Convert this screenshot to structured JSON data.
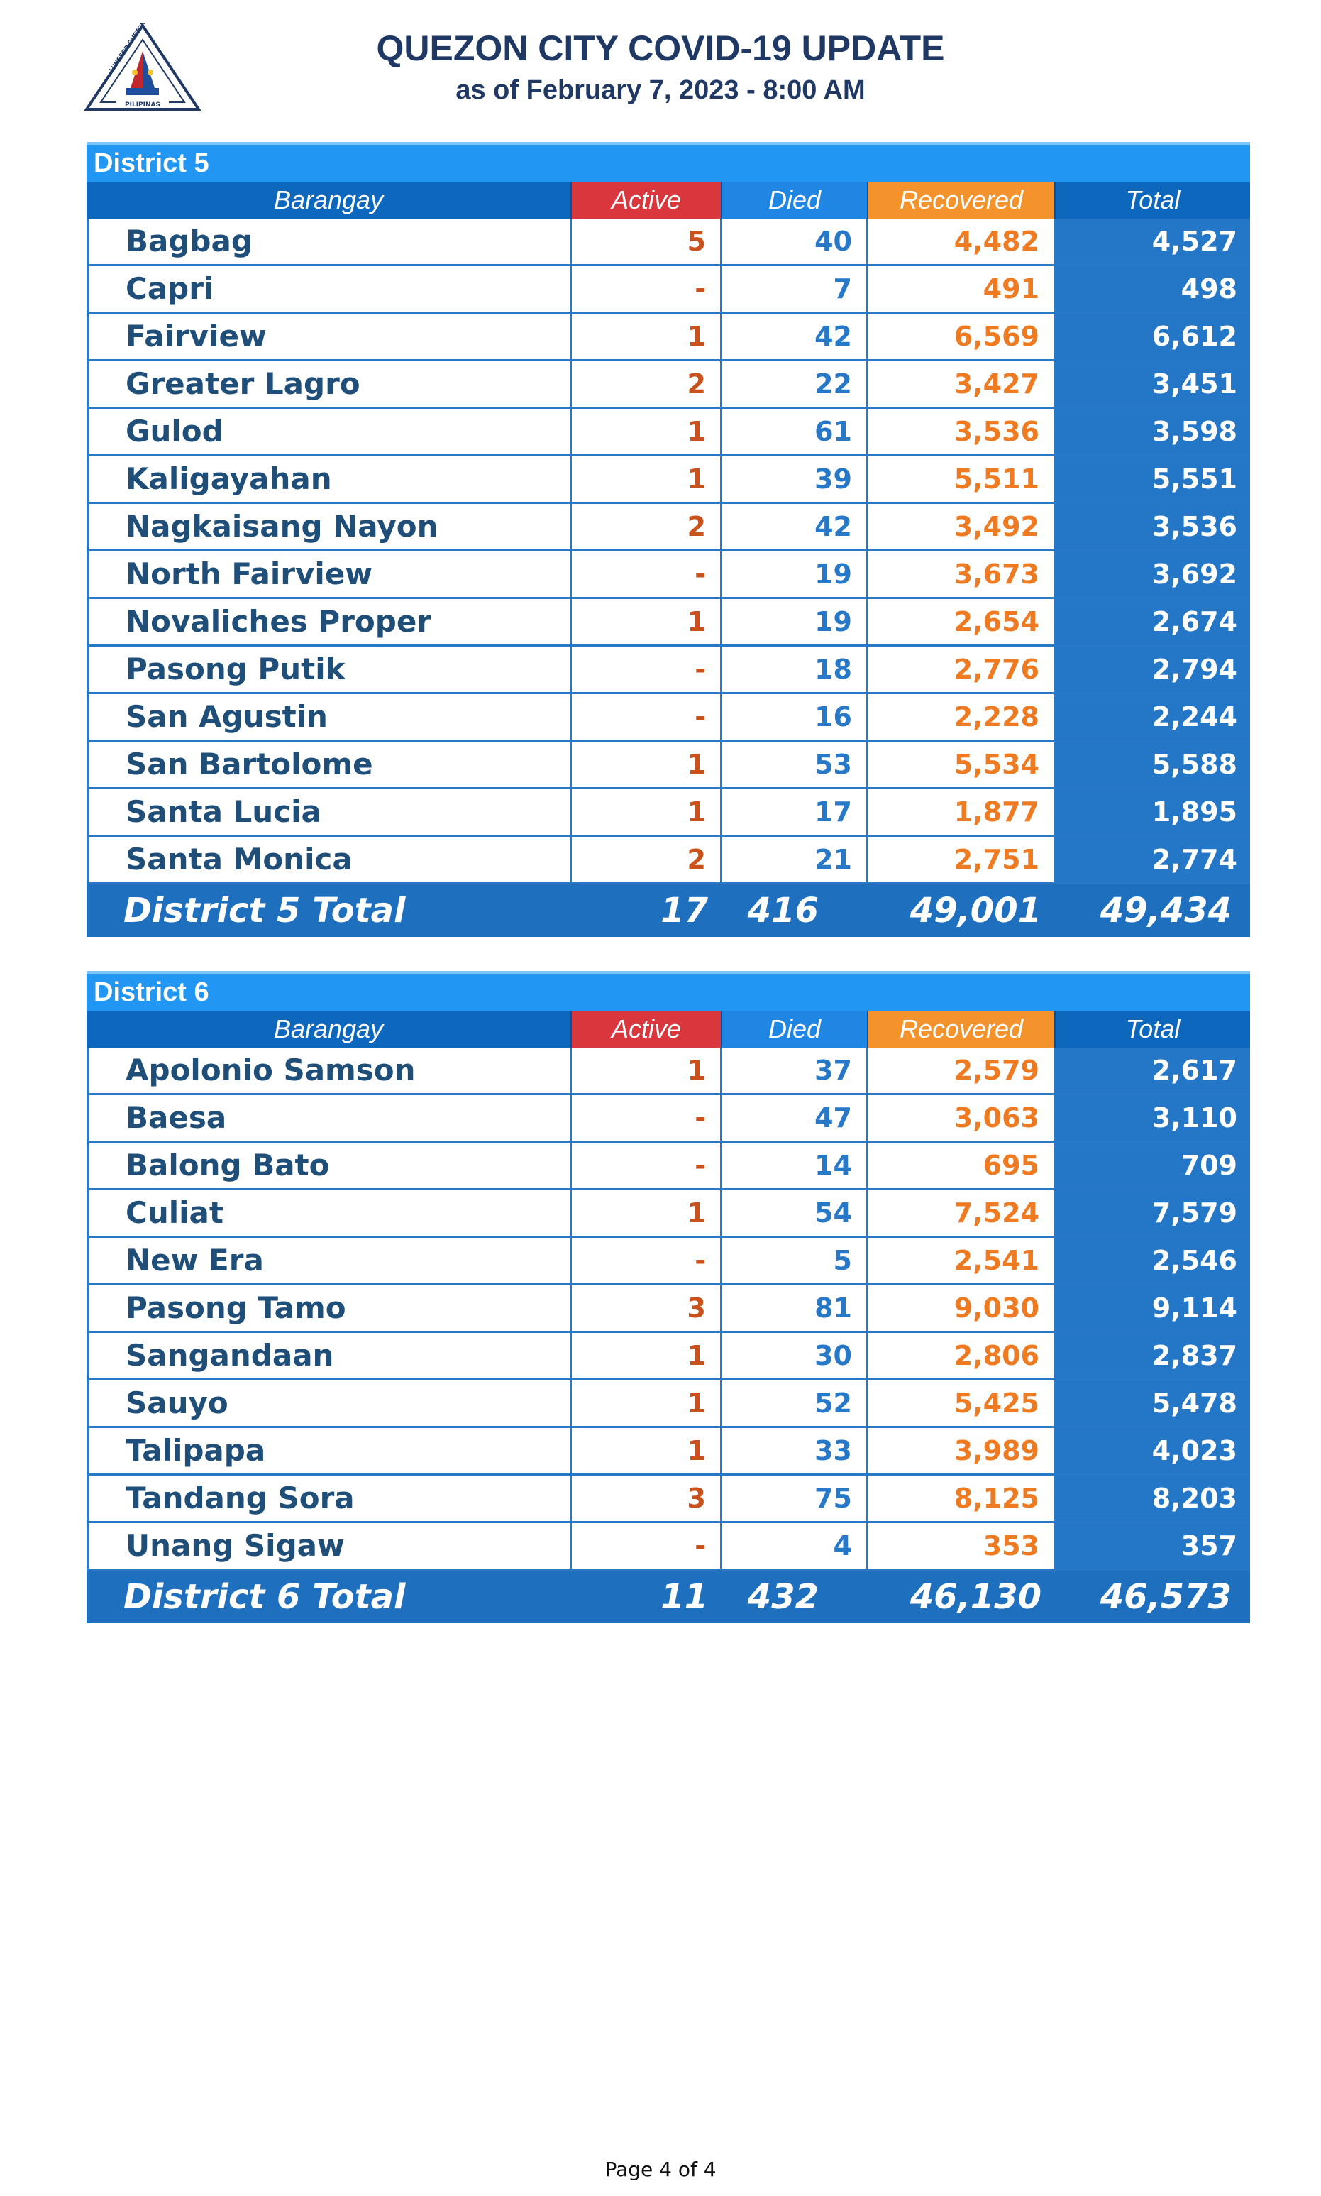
{
  "header": {
    "title": "QUEZON CITY COVID-19 UPDATE",
    "subtitle": "as of February  7, 2023 - 8:00 AM",
    "logo_top_text": "LUNGSOD QUEZON",
    "logo_bottom_text": "PILIPINAS"
  },
  "columns": {
    "barangay": "Barangay",
    "active": "Active",
    "died": "Died",
    "recovered": "Recovered",
    "total": "Total"
  },
  "colors": {
    "section_header": "#2196f3",
    "active": "#d9363e",
    "died": "#1f86e3",
    "recovered": "#f4932c",
    "total": "#0d67bd"
  },
  "districts": [
    {
      "name": "District 5",
      "rows": [
        {
          "barangay": "Bagbag",
          "active": "5",
          "died": "40",
          "recovered": "4,482",
          "total": "4,527"
        },
        {
          "barangay": "Capri",
          "active": "-",
          "died": "7",
          "recovered": "491",
          "total": "498"
        },
        {
          "barangay": "Fairview",
          "active": "1",
          "died": "42",
          "recovered": "6,569",
          "total": "6,612"
        },
        {
          "barangay": "Greater Lagro",
          "active": "2",
          "died": "22",
          "recovered": "3,427",
          "total": "3,451"
        },
        {
          "barangay": "Gulod",
          "active": "1",
          "died": "61",
          "recovered": "3,536",
          "total": "3,598"
        },
        {
          "barangay": "Kaligayahan",
          "active": "1",
          "died": "39",
          "recovered": "5,511",
          "total": "5,551"
        },
        {
          "barangay": "Nagkaisang Nayon",
          "active": "2",
          "died": "42",
          "recovered": "3,492",
          "total": "3,536"
        },
        {
          "barangay": "North Fairview",
          "active": "-",
          "died": "19",
          "recovered": "3,673",
          "total": "3,692"
        },
        {
          "barangay": "Novaliches Proper",
          "active": "1",
          "died": "19",
          "recovered": "2,654",
          "total": "2,674"
        },
        {
          "barangay": "Pasong Putik",
          "active": "-",
          "died": "18",
          "recovered": "2,776",
          "total": "2,794"
        },
        {
          "barangay": "San Agustin",
          "active": "-",
          "died": "16",
          "recovered": "2,228",
          "total": "2,244"
        },
        {
          "barangay": "San Bartolome",
          "active": "1",
          "died": "53",
          "recovered": "5,534",
          "total": "5,588"
        },
        {
          "barangay": "Santa Lucia",
          "active": "1",
          "died": "17",
          "recovered": "1,877",
          "total": "1,895"
        },
        {
          "barangay": "Santa Monica",
          "active": "2",
          "died": "21",
          "recovered": "2,751",
          "total": "2,774"
        }
      ],
      "total": {
        "label": "District 5 Total",
        "active": "17",
        "died": "416",
        "recovered": "49,001",
        "total": "49,434"
      }
    },
    {
      "name": "District 6",
      "rows": [
        {
          "barangay": "Apolonio Samson",
          "active": "1",
          "died": "37",
          "recovered": "2,579",
          "total": "2,617"
        },
        {
          "barangay": "Baesa",
          "active": "-",
          "died": "47",
          "recovered": "3,063",
          "total": "3,110"
        },
        {
          "barangay": "Balong Bato",
          "active": "-",
          "died": "14",
          "recovered": "695",
          "total": "709"
        },
        {
          "barangay": "Culiat",
          "active": "1",
          "died": "54",
          "recovered": "7,524",
          "total": "7,579"
        },
        {
          "barangay": "New Era",
          "active": "-",
          "died": "5",
          "recovered": "2,541",
          "total": "2,546"
        },
        {
          "barangay": "Pasong Tamo",
          "active": "3",
          "died": "81",
          "recovered": "9,030",
          "total": "9,114"
        },
        {
          "barangay": "Sangandaan",
          "active": "1",
          "died": "30",
          "recovered": "2,806",
          "total": "2,837"
        },
        {
          "barangay": "Sauyo",
          "active": "1",
          "died": "52",
          "recovered": "5,425",
          "total": "5,478"
        },
        {
          "barangay": "Talipapa",
          "active": "1",
          "died": "33",
          "recovered": "3,989",
          "total": "4,023"
        },
        {
          "barangay": "Tandang Sora",
          "active": "3",
          "died": "75",
          "recovered": "8,125",
          "total": "8,203"
        },
        {
          "barangay": "Unang Sigaw",
          "active": "-",
          "died": "4",
          "recovered": "353",
          "total": "357"
        }
      ],
      "total": {
        "label": "District 6 Total",
        "active": "11",
        "died": "432",
        "recovered": "46,130",
        "total": "46,573"
      }
    }
  ],
  "footer": {
    "page": "Page 4 of 4"
  }
}
